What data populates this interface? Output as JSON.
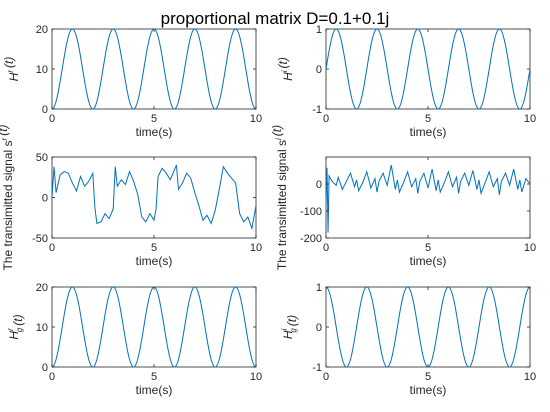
{
  "figure": {
    "title": "proportional matrix D=0.1+0.1j",
    "colors": {
      "series": "#0072BD",
      "axis": "#262626"
    }
  },
  "chart_data": [
    {
      "id": "hr",
      "type": "line",
      "xlabel": "time(s)",
      "ylabel": {
        "base": "H",
        "sup": "r",
        "sub": "",
        "arg": "(t)"
      },
      "xlim": [
        0,
        10
      ],
      "ylim": [
        0,
        20
      ],
      "xticks": [
        0,
        5,
        10
      ],
      "yticks": [
        0,
        10,
        20
      ],
      "grid": false,
      "series": [
        {
          "shape": "cosine",
          "offset": 10,
          "amplitude": -10,
          "period": 2,
          "phase": 0,
          "values_note": ""
        }
      ]
    },
    {
      "id": "hi",
      "type": "line",
      "xlabel": "time(s)",
      "ylabel": {
        "base": "H",
        "sup": "i",
        "sub": "",
        "arg": "(t)"
      },
      "xlim": [
        0,
        10
      ],
      "ylim": [
        -1,
        1
      ],
      "xticks": [
        0,
        5,
        10
      ],
      "yticks": [
        -1,
        0,
        1
      ],
      "grid": false,
      "series": [
        {
          "shape": "sine",
          "offset": 0,
          "amplitude": 1,
          "period": 2,
          "phase": 0
        }
      ]
    },
    {
      "id": "sr",
      "type": "line",
      "xlabel": "time(s)",
      "ylabel": {
        "base": "The transimitted signal s",
        "sup": "r",
        "sub": "",
        "arg": "(t)"
      },
      "xlim": [
        0,
        10
      ],
      "ylim": [
        -50,
        50
      ],
      "xticks": [
        0,
        5,
        10
      ],
      "yticks": [
        -50,
        0,
        50
      ],
      "grid": false,
      "series": [
        {
          "x": [
            0,
            0.1,
            0.2,
            0.4,
            0.6,
            0.8,
            1.0,
            1.2,
            1.4,
            1.6,
            1.8,
            2.0,
            2.1,
            2.2,
            2.4,
            2.6,
            2.8,
            3.0,
            3.1,
            3.2,
            3.4,
            3.6,
            3.8,
            4.0,
            4.2,
            4.4,
            4.6,
            4.8,
            5.0,
            5.1,
            5.2,
            5.4,
            5.6,
            5.8,
            6.0,
            6.1,
            6.2,
            6.4,
            6.6,
            6.8,
            7.0,
            7.2,
            7.4,
            7.6,
            7.8,
            8.0,
            8.2,
            8.4,
            8.6,
            8.8,
            9.0,
            9.2,
            9.4,
            9.6,
            9.8,
            10.0
          ],
          "values": [
            0,
            38,
            6,
            28,
            32,
            30,
            18,
            8,
            26,
            14,
            20,
            30,
            -12,
            -32,
            -30,
            -20,
            -26,
            -14,
            38,
            14,
            22,
            16,
            32,
            20,
            4,
            -24,
            -30,
            -20,
            -28,
            -14,
            26,
            36,
            30,
            22,
            34,
            40,
            10,
            18,
            30,
            24,
            6,
            -10,
            -28,
            -22,
            -32,
            -16,
            10,
            38,
            30,
            24,
            18,
            -20,
            -30,
            -24,
            -38,
            -10
          ]
        }
      ]
    },
    {
      "id": "si",
      "type": "line",
      "xlabel": "time(s)",
      "ylabel": {
        "base": "The transimitted signal s",
        "sup": "i",
        "sub": "",
        "arg": "(t)"
      },
      "xlim": [
        0,
        10
      ],
      "ylim": [
        -200,
        100
      ],
      "xticks": [
        0,
        5,
        10
      ],
      "yticks": [
        -200,
        -100,
        0
      ],
      "grid": false,
      "series": [
        {
          "x": [
            0,
            0.05,
            0.1,
            0.15,
            0.3,
            0.5,
            0.6,
            0.8,
            1.0,
            1.2,
            1.4,
            1.5,
            1.6,
            1.8,
            2.0,
            2.2,
            2.4,
            2.5,
            2.6,
            2.8,
            3.0,
            3.2,
            3.4,
            3.5,
            3.6,
            3.8,
            4.0,
            4.2,
            4.4,
            4.5,
            4.6,
            4.8,
            5.0,
            5.2,
            5.4,
            5.5,
            5.6,
            5.8,
            6.0,
            6.2,
            6.4,
            6.5,
            6.6,
            6.8,
            7.0,
            7.2,
            7.4,
            7.5,
            7.6,
            7.8,
            8.0,
            8.2,
            8.4,
            8.5,
            8.6,
            8.8,
            9.0,
            9.2,
            9.4,
            9.5,
            9.6,
            9.8,
            10.0
          ],
          "values": [
            -80,
            60,
            -180,
            30,
            10,
            -5,
            25,
            -20,
            10,
            40,
            -10,
            15,
            -25,
            5,
            45,
            -15,
            20,
            -30,
            10,
            40,
            -5,
            70,
            -20,
            15,
            -30,
            5,
            45,
            -10,
            20,
            -35,
            10,
            40,
            -15,
            55,
            -25,
            15,
            -30,
            5,
            45,
            -10,
            25,
            -35,
            10,
            40,
            -5,
            50,
            -20,
            15,
            -35,
            5,
            45,
            -10,
            20,
            -40,
            10,
            40,
            -5,
            55,
            -20,
            15,
            -30,
            20,
            0
          ]
        }
      ]
    },
    {
      "id": "hgr",
      "type": "line",
      "xlabel": "time(s)",
      "ylabel": {
        "base": "H",
        "sup": "r",
        "sub": "g",
        "arg": "(t)"
      },
      "xlim": [
        0,
        10
      ],
      "ylim": [
        0,
        20
      ],
      "xticks": [
        0,
        5,
        10
      ],
      "yticks": [
        0,
        10,
        20
      ],
      "grid": false,
      "series": [
        {
          "shape": "cosine",
          "offset": 10,
          "amplitude": -10,
          "period": 2,
          "phase": 0
        }
      ]
    },
    {
      "id": "hgi",
      "type": "line",
      "xlabel": "time(s)",
      "ylabel": {
        "base": "H",
        "sup": "i",
        "sub": "g",
        "arg": "(t)"
      },
      "xlim": [
        0,
        10
      ],
      "ylim": [
        -1,
        1
      ],
      "xticks": [
        0,
        5,
        10
      ],
      "yticks": [
        -1,
        0,
        1
      ],
      "grid": false,
      "series": [
        {
          "shape": "cosine",
          "offset": 0,
          "amplitude": 1,
          "period": 2,
          "phase": 0
        }
      ]
    }
  ]
}
